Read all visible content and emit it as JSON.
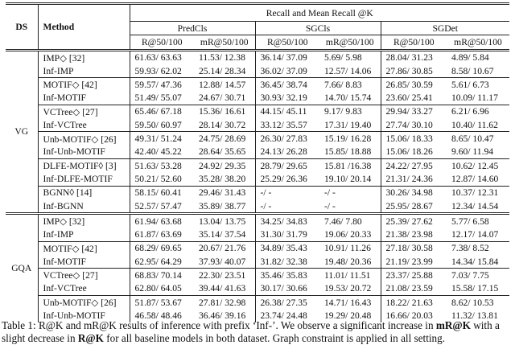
{
  "table": {
    "headers": {
      "ds": "DS",
      "method": "Method",
      "super": "Recall and Mean Recall @K",
      "tasks": [
        "PredCls",
        "SGCls",
        "SGDet"
      ],
      "metrics": [
        "R@50/100",
        "mR@50/100",
        "R@50/100",
        "mR@50/100",
        "R@50/100",
        "mR@50/100"
      ]
    },
    "groups": [
      {
        "ds": "VG",
        "rows": [
          [
            "IMP◇ [32]",
            "61.63/ 63.63",
            "11.53/ 12.38",
            "36.14/ 37.09",
            "5.69/ 5.98",
            "28.04/ 31.23",
            "4.89/ 5.84"
          ],
          [
            "Inf-IMP",
            "59.93/ 62.02",
            "25.14/ 28.34",
            "36.02/ 37.09",
            "12.57/ 14.06",
            "27.86/ 30.85",
            "8.58/ 10.67"
          ],
          [
            "MOTIF◇ [42]",
            "59.57/ 47.36",
            "12.88/ 14.57",
            "36.45/ 38.74",
            "7.66/ 8.83",
            "26.85/ 30.59",
            "5.61/ 6.73"
          ],
          [
            "Inf-MOTIF",
            "51.49/ 55.07",
            "24.67/ 30.71",
            "30.93/ 32.19",
            "14.70/ 15.74",
            "23.60/ 25.41",
            "10.09/ 11.17"
          ],
          [
            "VCTree◇ [27]",
            "65.46/ 67.18",
            "15.36/ 16.61",
            "44.15/ 45.11",
            "9.17/ 9.83",
            "29.94/ 33.27",
            "6.21/ 6.96"
          ],
          [
            "Inf-VCTree",
            "59.50/ 60.97",
            "28.14/ 30.72",
            "33.12/ 35.57",
            "17.31/ 19.40",
            "27.74/ 30.10",
            "10.40/ 11.62"
          ],
          [
            "Unb-MOTIF◇ [26]",
            "49.31/ 51.24",
            "24.75/ 28.69",
            "26.30/ 27.83",
            "15.19/ 16.28",
            "15.06/ 18.33",
            "8.65/ 10.47"
          ],
          [
            "Inf-Unb-MOTIF",
            "42.40/ 45.22",
            "28.64/ 35.65",
            "24.13/ 26.28",
            "15.85/ 18.88",
            "15.06/ 18.26",
            "9.60/ 11.94"
          ],
          [
            "DLFE-MOTIF◊ [3]",
            "51.63/ 53.28",
            "24.92/ 29.35",
            "28.79/ 29.65",
            "15.81 /16.38",
            "24.22/ 27.95",
            "10.62/ 12.45"
          ],
          [
            "Inf-DLFE-MOTIF",
            "50.21/ 52.60",
            "35.28/ 38.20",
            "25.29/ 26.36",
            "19.10/ 20.14",
            "21.31/ 24.36",
            "12.87/ 14.60"
          ],
          [
            "BGNN◊ [14]",
            "58.15/ 60.41",
            "29.46/ 31.43",
            "-/ -",
            "-/ -",
            "30.26/ 34.98",
            "10.37/ 12.31"
          ],
          [
            "Inf-BGNN",
            "52.57/ 57.47",
            "35.89/ 38.77",
            "-/ -",
            "-/ -",
            "25.95/ 28.67",
            "12.34/ 14.54"
          ]
        ]
      },
      {
        "ds": "GQA",
        "rows": [
          [
            "IMP◇ [32]",
            "61.94/ 63.68",
            "13.04/ 13.75",
            "34.25/ 34.83",
            "7.46/ 7.80",
            "25.39/ 27.62",
            "5.77/ 6.58"
          ],
          [
            "Inf-IMP",
            "61.87/ 63.69",
            "35.14/ 37.54",
            "31.30/ 31.79",
            "19.06/ 20.33",
            "21.38/ 23.98",
            "12.17/ 14.07"
          ],
          [
            "MOTIF◇ [42]",
            "68.29/ 69.65",
            "20.67/ 21.76",
            "34.89/ 35.43",
            "10.91/ 11.26",
            "27.18/ 30.58",
            "7.38/ 8.52"
          ],
          [
            "Inf-MOTIF",
            "62.95/ 64.29",
            "37.93/ 40.07",
            "31.82/ 32.38",
            "19.48/ 20.36",
            "21.19/ 23.99",
            "14.34/ 15.84"
          ],
          [
            "VCTree◇ [27]",
            "68.83/ 70.14",
            "22.30/ 23.51",
            "35.46/ 35.83",
            "11.01/ 11.51",
            "23.37/ 25.88",
            "7.03/ 7.75"
          ],
          [
            "Inf-VCTree",
            "62.80/ 64.05",
            "39.44/ 41.63",
            "30.17/ 30.66",
            "19.53/ 20.72",
            "21.08/ 23.59",
            "15.58/ 17.15"
          ],
          [
            "Unb-MOTIF◇ [26]",
            "51.87/ 53.67",
            "27.81/ 32.98",
            "26.38/ 27.35",
            "14.71/ 16.43",
            "18.22/ 21.63",
            "8.62/ 10.53"
          ],
          [
            "Inf-Unb-MOTIF",
            "46.58/ 48.46",
            "36.46/ 39.16",
            "23.74/ 24.48",
            "19.29/ 20.48",
            "16.66/ 20.03",
            "11.32/ 13.81"
          ]
        ]
      }
    ]
  },
  "caption": [
    "Table 1: R@K and mR@K results of inference with prefix ‘Inf-’. We observe a significant increase in ",
    "mR@K",
    " with a slight decrease in ",
    "R@K",
    " for all baseline models in both dataset. Graph constraint is applied in all setting."
  ]
}
